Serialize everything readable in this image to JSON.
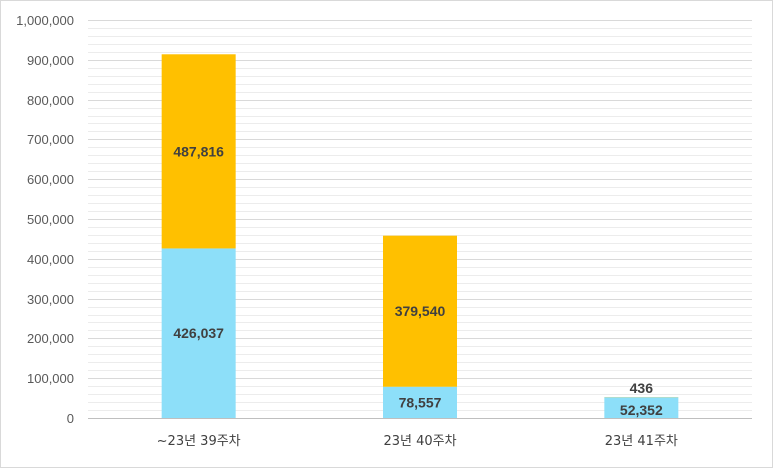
{
  "chart_data": {
    "type": "bar",
    "stacked": true,
    "categories": [
      "~23년 39주차",
      "23년 40주차",
      "23년 41주차"
    ],
    "series": [
      {
        "values": [
          426037,
          78557,
          52352
        ],
        "color": "#8ddff9",
        "data_labels": [
          "426,037",
          "78,557",
          "52,352"
        ]
      },
      {
        "values": [
          487816,
          379540,
          436
        ],
        "color": "#ffc000",
        "data_labels": [
          "487,816",
          "379,540",
          "436"
        ]
      }
    ],
    "ylim": [
      0,
      1000000
    ],
    "y_ticks": [
      0,
      100000,
      200000,
      300000,
      400000,
      500000,
      600000,
      700000,
      800000,
      900000,
      1000000
    ],
    "y_tick_labels": [
      "0",
      "100,000",
      "200,000",
      "300,000",
      "400,000",
      "500,000",
      "600,000",
      "700,000",
      "800,000",
      "900,000",
      "1,000,000"
    ],
    "grid": true,
    "legend": "none"
  }
}
